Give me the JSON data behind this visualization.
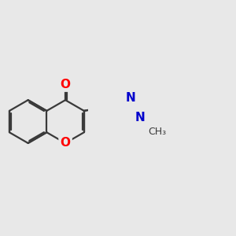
{
  "background_color": "#e8e8e8",
  "bond_color": "#3a3a3a",
  "bond_width": 1.6,
  "atom_colors": {
    "O": "#ff0000",
    "N": "#0000cc"
  },
  "font_size": 11,
  "fig_width": 3.0,
  "fig_height": 3.0,
  "dpi": 100
}
